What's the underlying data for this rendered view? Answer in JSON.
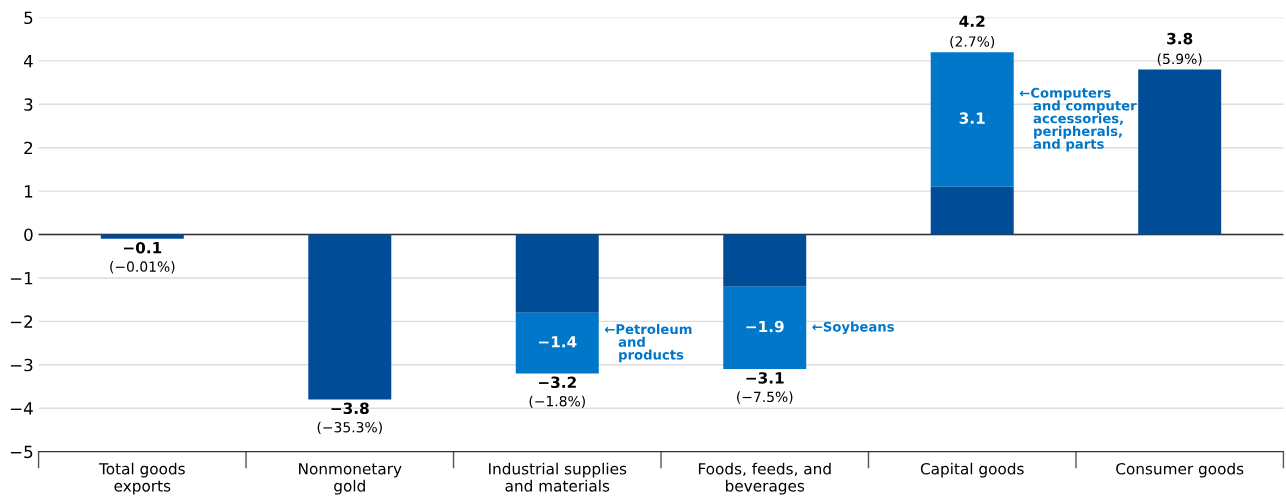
{
  "chart_data": {
    "type": "bar",
    "stacked": true,
    "categories": [
      "Total goods\nexports",
      "Nonmonetary\ngold",
      "Industrial supplies\nand materials",
      "Foods, feeds, and\nbeverages",
      "Capital goods",
      "Consumer goods"
    ],
    "series": [
      {
        "color": "#004c97",
        "values": [
          -0.1,
          -3.8,
          -1.8,
          -1.2,
          1.1,
          3.8
        ]
      },
      {
        "color": "#0077c8",
        "values": [
          null,
          null,
          -1.4,
          -1.9,
          3.1,
          null
        ],
        "value_labels": [
          null,
          null,
          "−1.4",
          "−1.9",
          "3.1",
          null
        ]
      }
    ],
    "totals": [
      "−0.1\n(−0.01%)",
      "−3.8\n(−35.3%)",
      "−3.2\n(−1.8%)",
      "−3.1\n(−7.5%)",
      "4.2\n(2.7%)",
      "3.8\n(5.9%)"
    ],
    "ylim": [
      -5,
      5
    ],
    "yticks": [
      {
        "value": -5,
        "label": "−5"
      },
      {
        "value": -4,
        "label": "−4"
      },
      {
        "value": -3,
        "label": "−3"
      },
      {
        "value": -2,
        "label": "−2"
      },
      {
        "value": -1,
        "label": "−1"
      },
      0,
      1,
      2,
      3,
      4,
      5
    ],
    "grid": "y",
    "annotations": [
      "←Petroleum\n   and\n   products",
      "←Soybeans",
      "←Computers\n   and computer\n   accessories,\n   peripherals,\n   and parts"
    ]
  }
}
